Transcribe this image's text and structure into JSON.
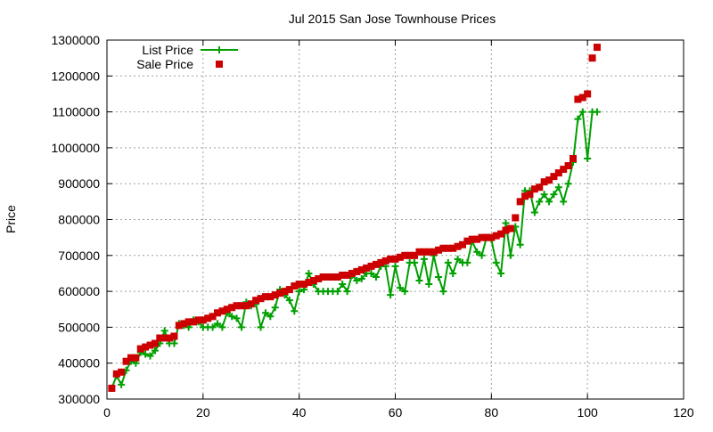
{
  "chart_data": {
    "type": "line",
    "title": "Jul 2015 San Jose Townhouse Prices",
    "xlabel": "",
    "ylabel": "Price",
    "xlim": [
      0,
      120
    ],
    "ylim": [
      300000,
      1300000
    ],
    "xticks": [
      0,
      20,
      40,
      60,
      80,
      100,
      120
    ],
    "yticks": [
      300000,
      400000,
      500000,
      600000,
      700000,
      800000,
      900000,
      1000000,
      1100000,
      1200000,
      1300000
    ],
    "grid": true,
    "legend_position": "top-left",
    "series": [
      {
        "name": "List Price",
        "style": "linespoints",
        "marker": "plus",
        "color": "#00a000",
        "values": [
          330000,
          365000,
          340000,
          380000,
          405000,
          400000,
          430000,
          425000,
          420000,
          435000,
          455000,
          490000,
          455000,
          455000,
          510000,
          505000,
          500000,
          520000,
          515000,
          500000,
          500000,
          500000,
          510000,
          500000,
          540000,
          530000,
          525000,
          500000,
          570000,
          560000,
          565000,
          500000,
          540000,
          530000,
          555000,
          605000,
          590000,
          575000,
          545000,
          600000,
          605000,
          650000,
          620000,
          600000,
          600000,
          600000,
          600000,
          600000,
          620000,
          600000,
          645000,
          630000,
          635000,
          650000,
          650000,
          640000,
          670000,
          670000,
          590000,
          670000,
          610000,
          600000,
          680000,
          680000,
          630000,
          690000,
          620000,
          700000,
          640000,
          600000,
          680000,
          650000,
          690000,
          680000,
          680000,
          740000,
          710000,
          700000,
          750000,
          745000,
          680000,
          650000,
          790000,
          700000,
          780000,
          730000,
          880000,
          880000,
          820000,
          850000,
          870000,
          850000,
          870000,
          890000,
          850000,
          900000,
          960000,
          1080000,
          1100000,
          970000,
          1100000,
          1100000
        ]
      },
      {
        "name": "Sale Price",
        "style": "points",
        "marker": "square",
        "color": "#cc0000",
        "values": [
          330000,
          370000,
          375000,
          405000,
          415000,
          415000,
          440000,
          445000,
          450000,
          455000,
          470000,
          470000,
          470000,
          475000,
          505000,
          510000,
          515000,
          515000,
          520000,
          520000,
          525000,
          530000,
          540000,
          545000,
          550000,
          555000,
          560000,
          560000,
          560000,
          565000,
          575000,
          580000,
          585000,
          585000,
          590000,
          595000,
          600000,
          605000,
          615000,
          620000,
          620000,
          625000,
          630000,
          635000,
          640000,
          640000,
          640000,
          640000,
          645000,
          645000,
          650000,
          655000,
          660000,
          665000,
          670000,
          675000,
          680000,
          685000,
          690000,
          690000,
          695000,
          700000,
          700000,
          700000,
          710000,
          710000,
          710000,
          710000,
          715000,
          720000,
          720000,
          720000,
          725000,
          730000,
          740000,
          745000,
          745000,
          750000,
          750000,
          750000,
          755000,
          760000,
          770000,
          775000,
          805000,
          850000,
          865000,
          870000,
          885000,
          890000,
          905000,
          910000,
          920000,
          930000,
          940000,
          950000,
          970000,
          1135000,
          1140000,
          1150000,
          1250000,
          1280000
        ]
      }
    ]
  }
}
